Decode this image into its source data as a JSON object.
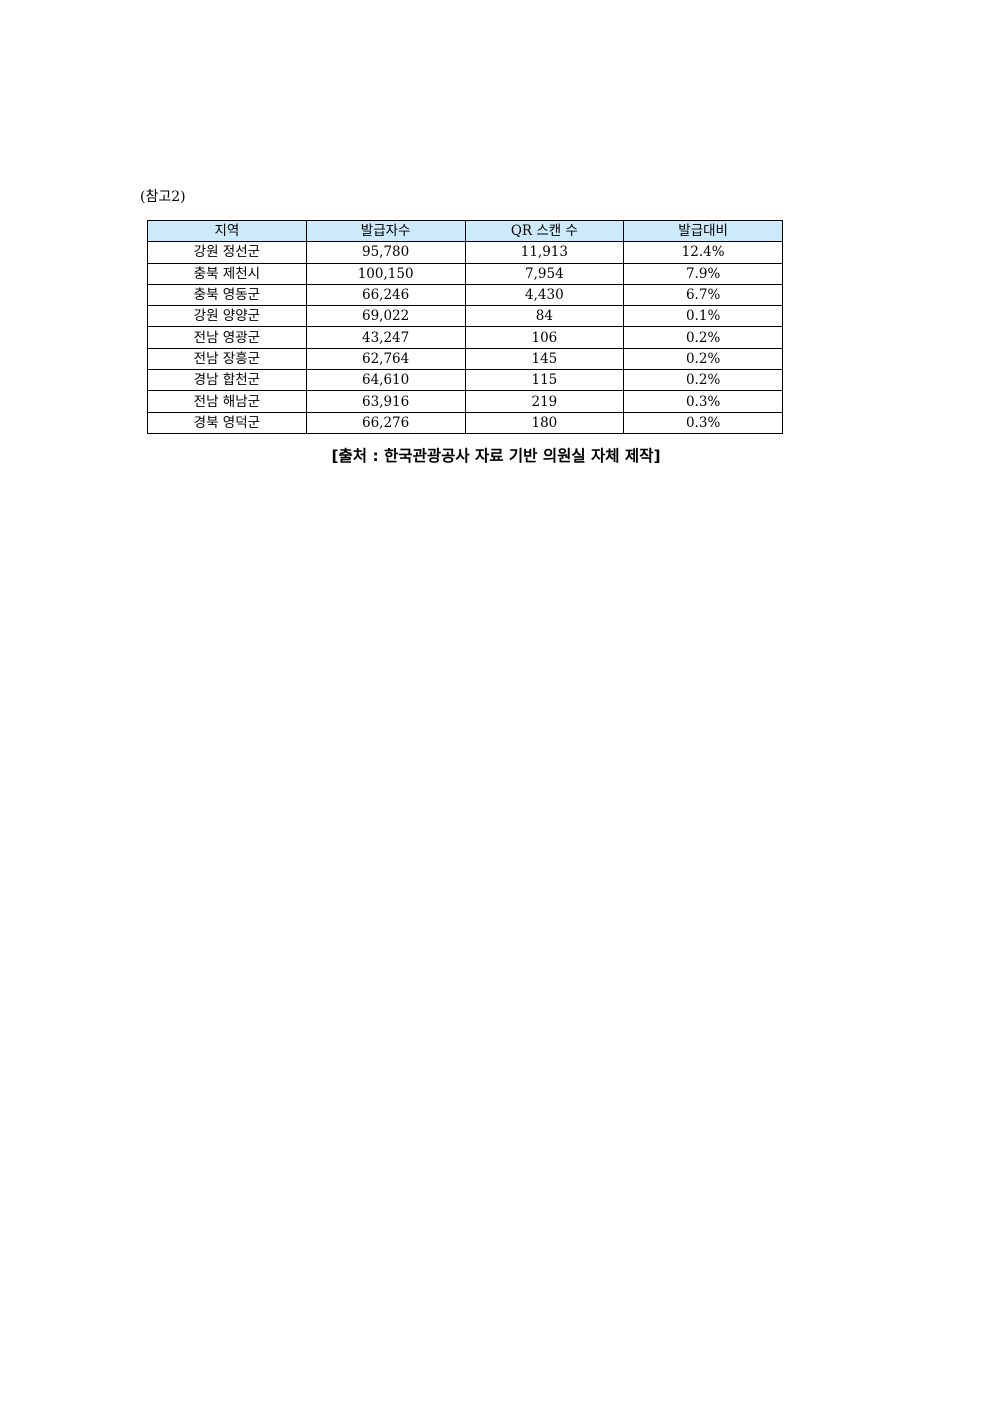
{
  "reference_label": "(참고2)",
  "table": {
    "headers": [
      "지역",
      "발급자수",
      "QR 스캔 수",
      "발급대비"
    ],
    "rows": [
      [
        "강원 정선군",
        "95,780",
        "11,913",
        "12.4%"
      ],
      [
        "충북 제천시",
        "100,150",
        "7,954",
        "7.9%"
      ],
      [
        "충북 영동군",
        "66,246",
        "4,430",
        "6.7%"
      ],
      [
        "강원 양양군",
        "69,022",
        "84",
        "0.1%"
      ],
      [
        "전남 영광군",
        "43,247",
        "106",
        "0.2%"
      ],
      [
        "전남 장흥군",
        "62,764",
        "145",
        "0.2%"
      ],
      [
        "경남 합천군",
        "64,610",
        "115",
        "0.2%"
      ],
      [
        "전남 해남군",
        "63,916",
        "219",
        "0.3%"
      ],
      [
        "경북 영덕군",
        "66,276",
        "180",
        "0.3%"
      ]
    ]
  },
  "caption": "[출처 : 한국관광공사 자료 기반 의원실 자체 제작]"
}
